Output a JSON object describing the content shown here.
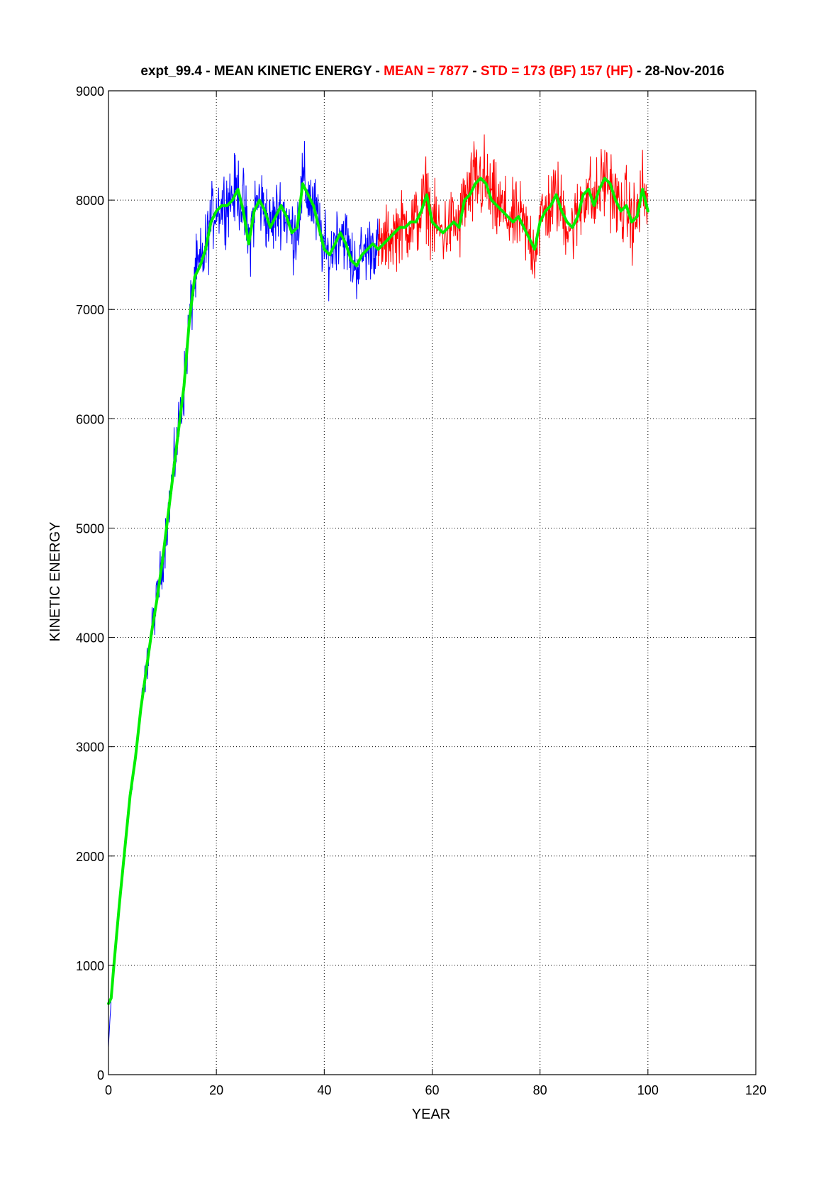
{
  "chart_data": {
    "type": "line",
    "title_parts": [
      {
        "text": "expt_99.4 - MEAN KINETIC ENERGY - ",
        "color": "#000000"
      },
      {
        "text": "MEAN =  7877",
        "color": "#ff0000"
      },
      {
        "text": " - ",
        "color": "#000000"
      },
      {
        "text": "STD =  173 (BF)  157 (HF)",
        "color": "#ff0000"
      },
      {
        "text": " - 28-Nov-2016",
        "color": "#000000"
      }
    ],
    "xlabel": "YEAR",
    "ylabel": "KINETIC ENERGY",
    "xlim": [
      0,
      120
    ],
    "ylim": [
      0,
      9000
    ],
    "x_ticks": [
      0,
      20,
      40,
      60,
      80,
      100,
      120
    ],
    "y_ticks": [
      0,
      1000,
      2000,
      3000,
      4000,
      5000,
      6000,
      7000,
      8000,
      9000
    ],
    "grid": true,
    "colors": {
      "spin_up": "#0000ff",
      "analysis": "#ff0000",
      "smoothed": "#00ee00"
    },
    "series": [
      {
        "color_key": "spin_up",
        "style": "noisy",
        "x": [
          0,
          0.5,
          1,
          2,
          3,
          4,
          5,
          6,
          7,
          8,
          9,
          10,
          11,
          12,
          13,
          14,
          15,
          16,
          17,
          18,
          19,
          20,
          21,
          22,
          23,
          24,
          25,
          26,
          27,
          28,
          29,
          30,
          31,
          32,
          33,
          34,
          35,
          36,
          37,
          38,
          39,
          40,
          41,
          42,
          43,
          44,
          45,
          46,
          47,
          48,
          49,
          50
        ],
        "y": [
          250,
          700,
          1000,
          1550,
          2050,
          2550,
          2900,
          3350,
          3700,
          4050,
          4350,
          4700,
          5100,
          5500,
          5900,
          6300,
          6900,
          7300,
          7400,
          7550,
          7800,
          7950,
          7950,
          8000,
          8050,
          8100,
          7950,
          7600,
          7900,
          8000,
          7900,
          7750,
          7850,
          7950,
          7850,
          7700,
          7750,
          8150,
          8050,
          7950,
          7750,
          7550,
          7450,
          7650,
          7750,
          7650,
          7450,
          7400,
          7500,
          7550,
          7600,
          7550
        ],
        "amplitude": [
          0,
          50,
          50,
          60,
          60,
          70,
          80,
          100,
          120,
          140,
          160,
          180,
          180,
          200,
          220,
          220,
          220,
          230,
          250,
          250,
          240,
          230,
          240,
          240,
          240,
          250,
          260,
          270,
          270,
          260,
          250,
          240,
          240,
          240,
          240,
          250,
          270,
          280,
          270,
          260,
          250,
          240,
          230,
          230,
          230,
          230,
          230,
          230,
          230,
          220,
          220,
          220
        ]
      },
      {
        "color_key": "analysis",
        "style": "noisy",
        "x": [
          50,
          51,
          52,
          53,
          54,
          55,
          56,
          57,
          58,
          59,
          60,
          61,
          62,
          63,
          64,
          65,
          66,
          67,
          68,
          69,
          70,
          71,
          72,
          73,
          74,
          75,
          76,
          77,
          78,
          79,
          80,
          81,
          82,
          83,
          84,
          85,
          86,
          87,
          88,
          89,
          90,
          91,
          92,
          93,
          94,
          95,
          96,
          97,
          98,
          99,
          100
        ],
        "y": [
          7550,
          7600,
          7650,
          7700,
          7750,
          7750,
          7800,
          7800,
          7900,
          8050,
          7800,
          7750,
          7700,
          7750,
          7800,
          7750,
          8000,
          8050,
          8150,
          8200,
          8150,
          8000,
          7950,
          7900,
          7850,
          7800,
          7850,
          7750,
          7650,
          7550,
          7800,
          7900,
          7950,
          8050,
          7900,
          7800,
          7750,
          7850,
          8050,
          8100,
          7950,
          8100,
          8200,
          8150,
          8000,
          7900,
          7950,
          7800,
          7850,
          8100,
          7900
        ],
        "amplitude": [
          220,
          230,
          230,
          240,
          240,
          250,
          250,
          260,
          270,
          280,
          260,
          250,
          250,
          250,
          250,
          260,
          270,
          280,
          320,
          330,
          300,
          280,
          270,
          260,
          250,
          250,
          250,
          250,
          260,
          270,
          260,
          260,
          270,
          270,
          260,
          250,
          250,
          260,
          270,
          270,
          260,
          270,
          280,
          270,
          260,
          250,
          260,
          260,
          270,
          270,
          260
        ]
      },
      {
        "color_key": "smoothed",
        "style": "smooth",
        "x": [
          0,
          0.5,
          1,
          2,
          3,
          4,
          5,
          6,
          7,
          8,
          9,
          10,
          11,
          12,
          13,
          14,
          15,
          16,
          17,
          18,
          19,
          20,
          21,
          22,
          23,
          24,
          25,
          26,
          27,
          28,
          29,
          30,
          31,
          32,
          33,
          34,
          35,
          36,
          37,
          38,
          39,
          40,
          41,
          42,
          43,
          44,
          45,
          46,
          47,
          48,
          49,
          50,
          51,
          52,
          53,
          54,
          55,
          56,
          57,
          58,
          59,
          60,
          61,
          62,
          63,
          64,
          65,
          66,
          67,
          68,
          69,
          70,
          71,
          72,
          73,
          74,
          75,
          76,
          77,
          78,
          79,
          80,
          81,
          82,
          83,
          84,
          85,
          86,
          87,
          88,
          89,
          90,
          91,
          92,
          93,
          94,
          95,
          96,
          97,
          98,
          99,
          100
        ],
        "y": [
          650,
          700,
          1000,
          1550,
          2050,
          2550,
          2900,
          3350,
          3700,
          4050,
          4350,
          4700,
          5100,
          5500,
          5900,
          6300,
          6900,
          7300,
          7400,
          7550,
          7800,
          7900,
          7950,
          7950,
          8000,
          8100,
          7900,
          7600,
          7900,
          8000,
          7900,
          7750,
          7850,
          7950,
          7850,
          7700,
          7750,
          8150,
          8050,
          7950,
          7750,
          7550,
          7500,
          7600,
          7700,
          7600,
          7450,
          7400,
          7500,
          7550,
          7600,
          7550,
          7600,
          7650,
          7700,
          7750,
          7750,
          7800,
          7800,
          7900,
          8050,
          7800,
          7750,
          7700,
          7750,
          7800,
          7750,
          8000,
          8050,
          8150,
          8200,
          8150,
          8000,
          7950,
          7900,
          7850,
          7800,
          7850,
          7750,
          7650,
          7550,
          7800,
          7900,
          7950,
          8050,
          7900,
          7800,
          7750,
          7850,
          8050,
          8100,
          7950,
          8100,
          8200,
          8150,
          8000,
          7900,
          7950,
          7800,
          7850,
          8100,
          7900
        ]
      }
    ]
  }
}
